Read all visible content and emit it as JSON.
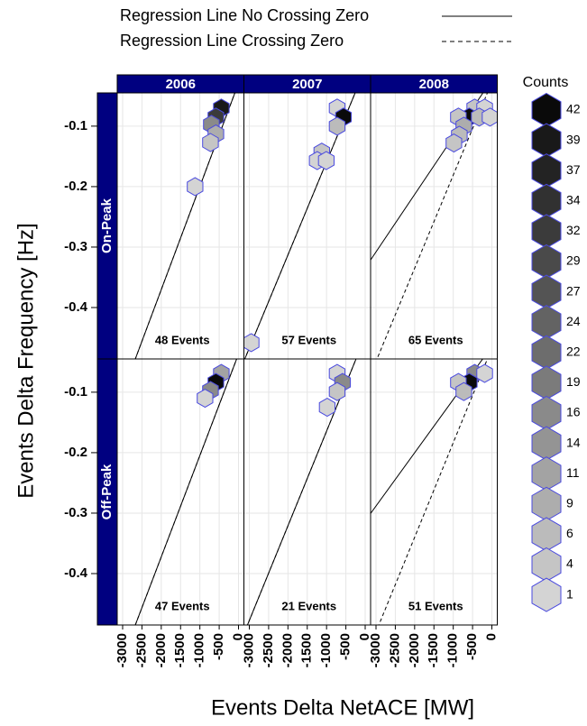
{
  "chart_data": {
    "type": "hexbin",
    "x_label": "Events Delta NetACE [MW]",
    "y_label": "Events Delta Frequency [Hz]",
    "columns": [
      "2006",
      "2007",
      "2008"
    ],
    "rows": [
      "On-Peak",
      "Off-Peak"
    ],
    "xlim": [
      -3140,
      140
    ],
    "ylim": [
      -0.485,
      -0.045
    ],
    "xticks": [
      -3000,
      -2500,
      -2000,
      -1500,
      -1000,
      -500,
      0
    ],
    "yticks": [
      -0.1,
      -0.2,
      -0.3,
      -0.4
    ],
    "grid": true,
    "strip_color": "#000080",
    "hex_edge_color": "#4a4adf",
    "color_low": "#d9d9d9",
    "color_high": "#0a0a0a",
    "legend_title": "Counts",
    "count_levels": [
      42,
      39,
      37,
      34,
      32,
      29,
      27,
      24,
      22,
      19,
      16,
      14,
      11,
      9,
      6,
      4,
      1
    ],
    "lines": [
      {
        "name": "Regression Line No Crossing Zero",
        "style": "solid"
      },
      {
        "name": "Regression Line Crossing Zero",
        "style": "dashed"
      }
    ],
    "panels": [
      [
        {
          "label": "48 Events",
          "hexes": {
            "x": [
              -445,
              -586,
              -703,
              -586,
              -726,
              -1125
            ],
            "y": [
              -0.07,
              -0.085,
              -0.097,
              -0.113,
              -0.127,
              -0.2
            ],
            "counts": [
              39,
              32,
              16,
              9,
              4,
              1
            ]
          },
          "fits": [
            {
              "intercept": -0.029,
              "slope": 0.0001707
            },
            {
              "intercept": -0.029,
              "slope": 0.0001707
            }
          ]
        },
        {
          "label": "57 Events",
          "hexes": {
            "x": [
              -726,
              -562,
              -726,
              -1125,
              -1242,
              -1008,
              -2952
            ],
            "y": [
              -0.07,
              -0.085,
              -0.1,
              -0.143,
              -0.157,
              -0.157,
              -0.458
            ],
            "counts": [
              1,
              42,
              6,
              4,
              1,
              1,
              1
            ]
          },
          "fits": [
            {
              "intercept": -0.005,
              "slope": 0.000154
            },
            {
              "intercept": -0.005,
              "slope": 0.000154
            }
          ]
        },
        {
          "label": "65 Events",
          "hexes": {
            "x": [
              -445,
              -187,
              -585,
              -328,
              -47,
              -867,
              -726,
              -843,
              -984
            ],
            "y": [
              -0.07,
              -0.07,
              -0.085,
              -0.085,
              -0.085,
              -0.085,
              -0.1,
              -0.115,
              -0.128
            ],
            "counts": [
              4,
              1,
              42,
              6,
              1,
              4,
              9,
              6,
              4
            ]
          },
          "fits": [
            {
              "intercept": -0.023,
              "slope": 9.5e-05
            },
            {
              "intercept": -0.027,
              "slope": 0.000154
            }
          ]
        }
      ],
      [
        {
          "label": "47 Events",
          "hexes": {
            "x": [
              -445,
              -586,
              -726,
              -867
            ],
            "y": [
              -0.069,
              -0.084,
              -0.097,
              -0.11
            ],
            "counts": [
              11,
              42,
              16,
              1
            ]
          },
          "fits": [
            {
              "intercept": -0.037,
              "slope": 0.0001677
            },
            {
              "intercept": -0.037,
              "slope": 0.0001677
            }
          ]
        },
        {
          "label": "21 Events",
          "hexes": {
            "x": [
              -726,
              -586,
              -726,
              -984
            ],
            "y": [
              -0.069,
              -0.084,
              -0.099,
              -0.125
            ],
            "counts": [
              1,
              16,
              4,
              1
            ]
          },
          "fits": [
            {
              "intercept": -0.008,
              "slope": 0.0001565
            },
            {
              "intercept": -0.008,
              "slope": 0.0001565
            }
          ]
        },
        {
          "label": "51 Events",
          "hexes": {
            "x": [
              -445,
              -187,
              -585,
              -867,
              -726
            ],
            "y": [
              -0.069,
              -0.069,
              -0.084,
              -0.084,
              -0.099
            ],
            "counts": [
              16,
              1,
              42,
              4,
              6
            ]
          },
          "fits": [
            {
              "intercept": -0.024,
              "slope": 8.81e-05
            },
            {
              "intercept": -0.027,
              "slope": 0.0001565
            }
          ]
        }
      ]
    ]
  }
}
